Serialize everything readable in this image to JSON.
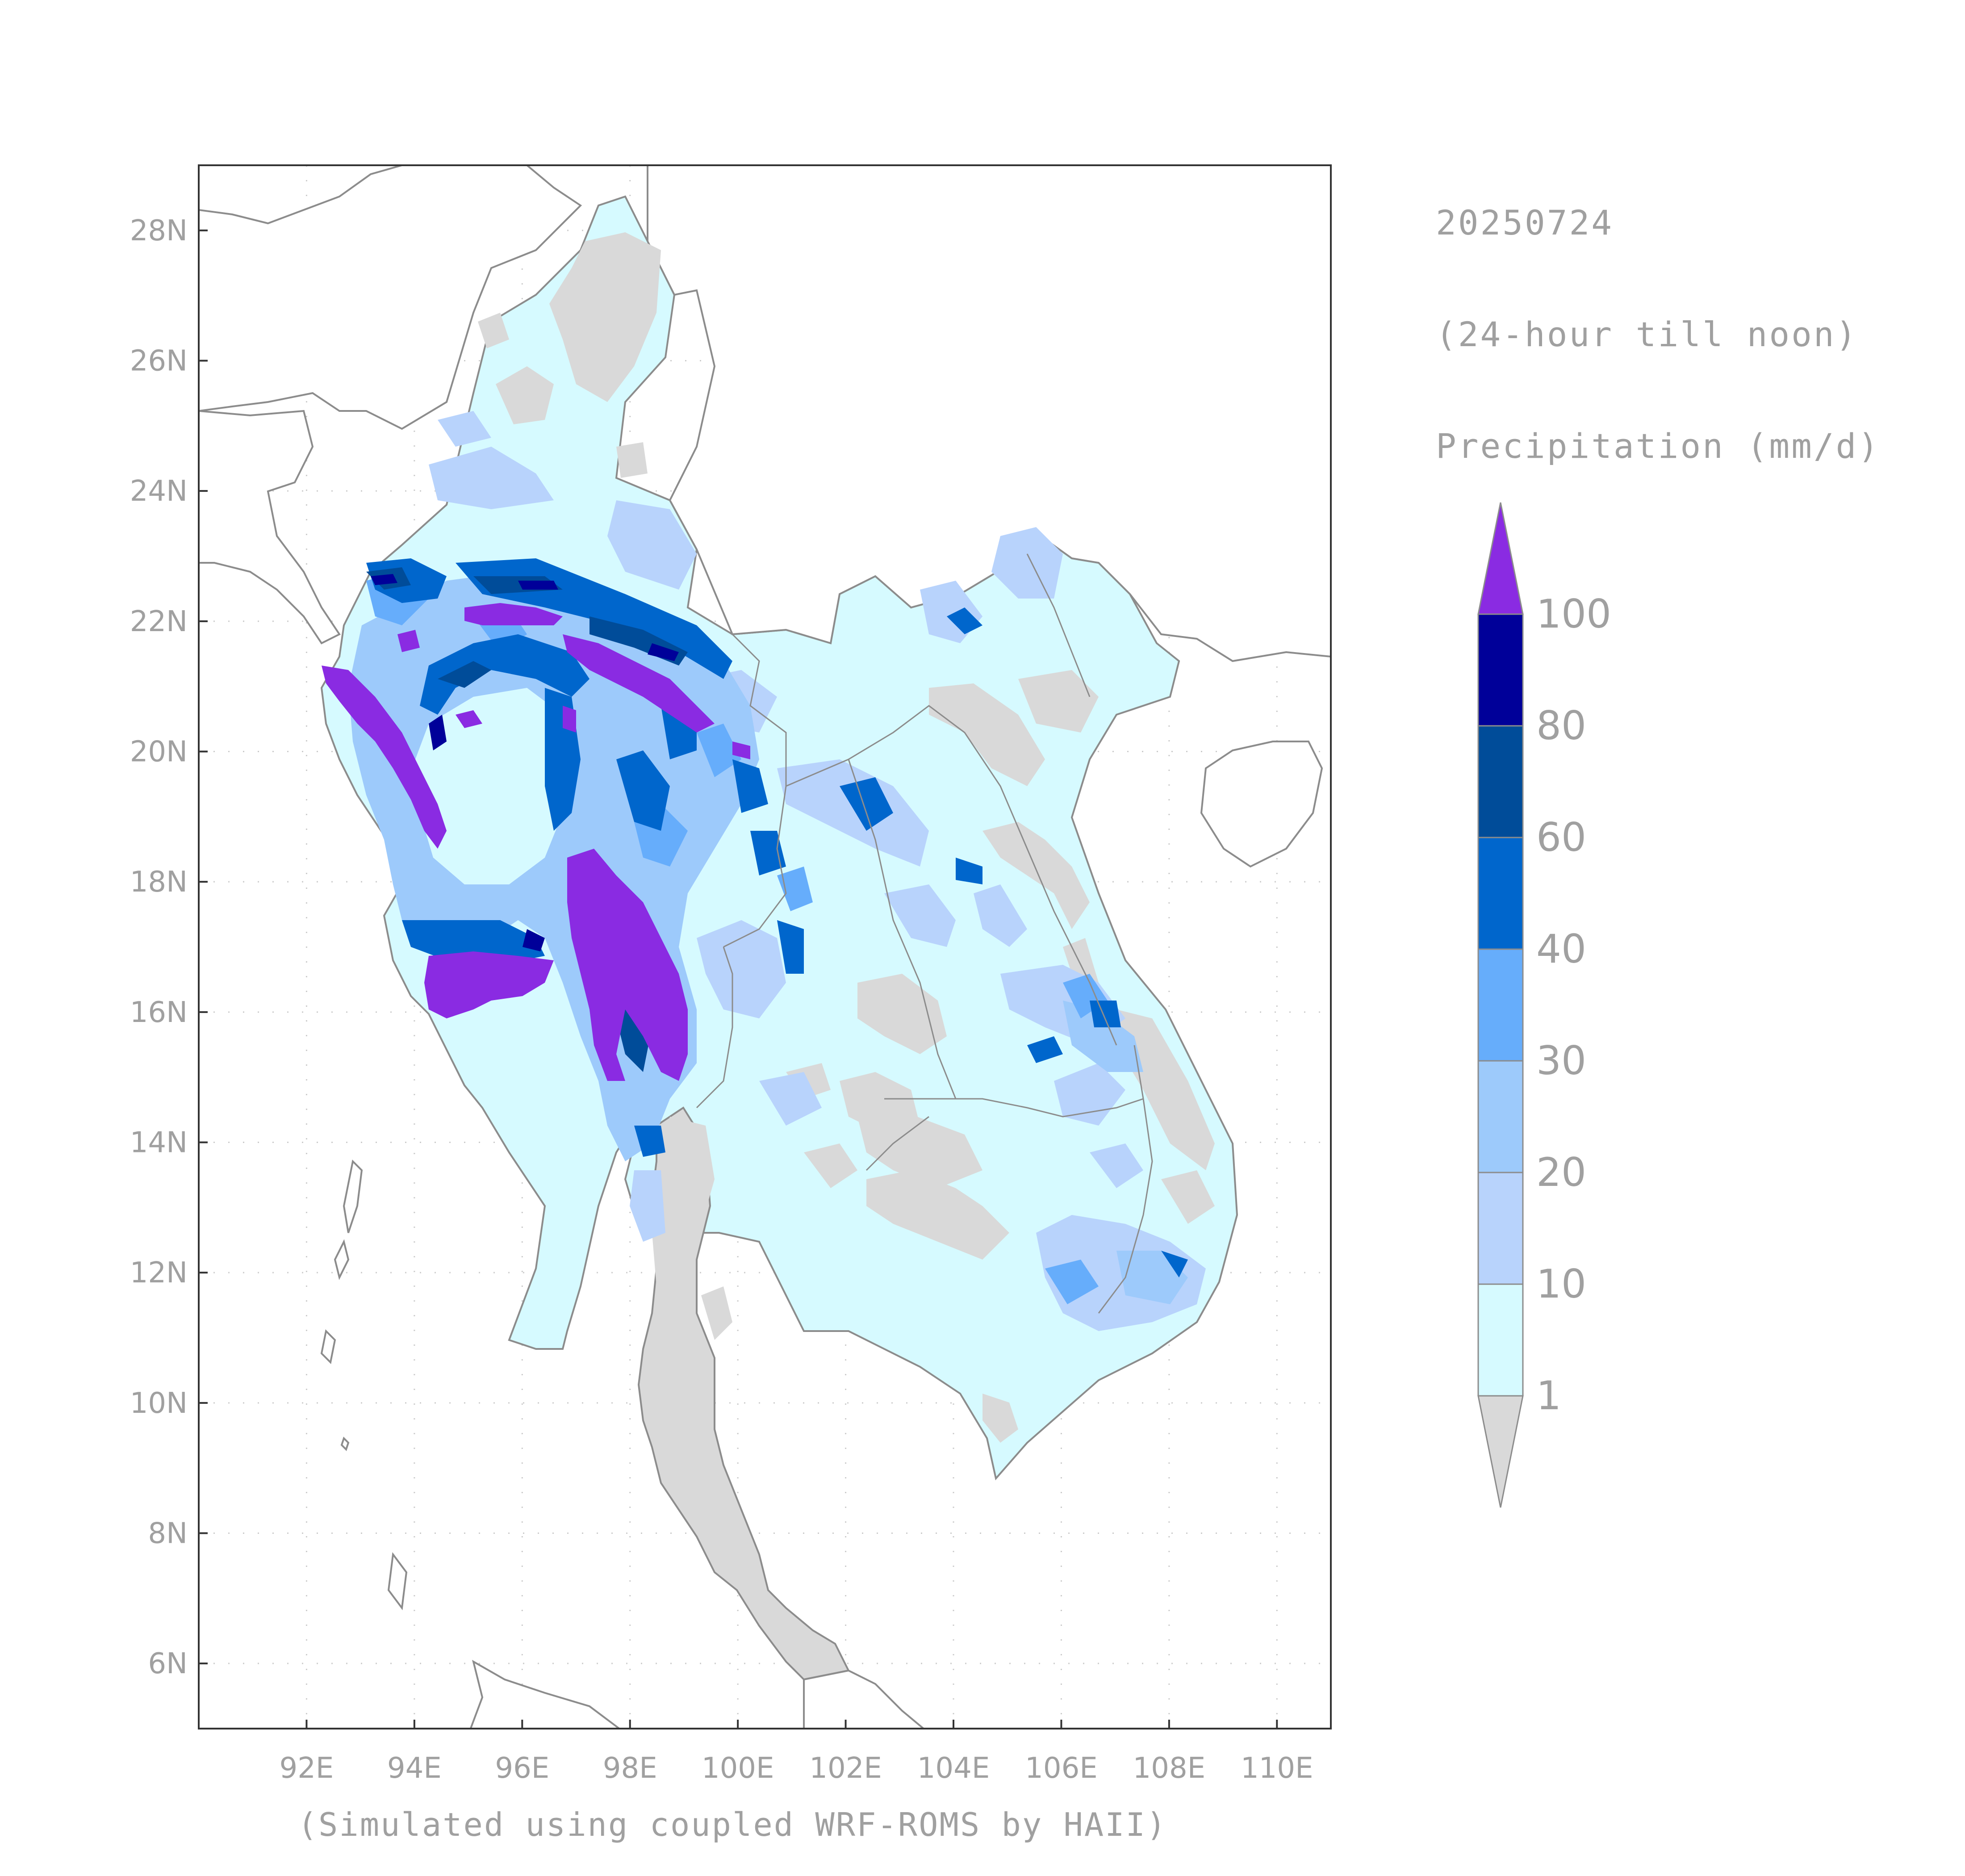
{
  "date_label": "20250724",
  "period_label": "(24-hour till noon)",
  "variable_label": "Precipitation (mm/d)",
  "caption": "(Simulated using coupled WRF-ROMS by HAII)",
  "colors": {
    "no_rain": "#d9d9d9",
    "c1_10": "#d6faff",
    "c10_20": "#b8d3fc",
    "c20_30": "#9dcafb",
    "c30_40": "#66adfb",
    "c40_60": "#0066cc",
    "c60_80": "#004c99",
    "c80_100": "#000099",
    "c100_plus": "#8a2be2",
    "coast": "#8c8c8c"
  },
  "map": {
    "lon_range": [
      90,
      111
    ],
    "lat_range": [
      5,
      29
    ],
    "x_ticks": [
      "92E",
      "94E",
      "96E",
      "98E",
      "100E",
      "102E",
      "104E",
      "106E",
      "108E",
      "110E"
    ],
    "x_tick_values": [
      92,
      94,
      96,
      98,
      100,
      102,
      104,
      106,
      108,
      110
    ],
    "y_ticks": [
      "6N",
      "8N",
      "10N",
      "12N",
      "14N",
      "16N",
      "18N",
      "20N",
      "22N",
      "24N",
      "26N",
      "28N"
    ],
    "y_tick_values": [
      6,
      8,
      10,
      12,
      14,
      16,
      18,
      20,
      22,
      24,
      26,
      28
    ]
  },
  "colorbar": {
    "labels": [
      "1",
      "10",
      "20",
      "30",
      "40",
      "60",
      "80",
      "100"
    ]
  }
}
